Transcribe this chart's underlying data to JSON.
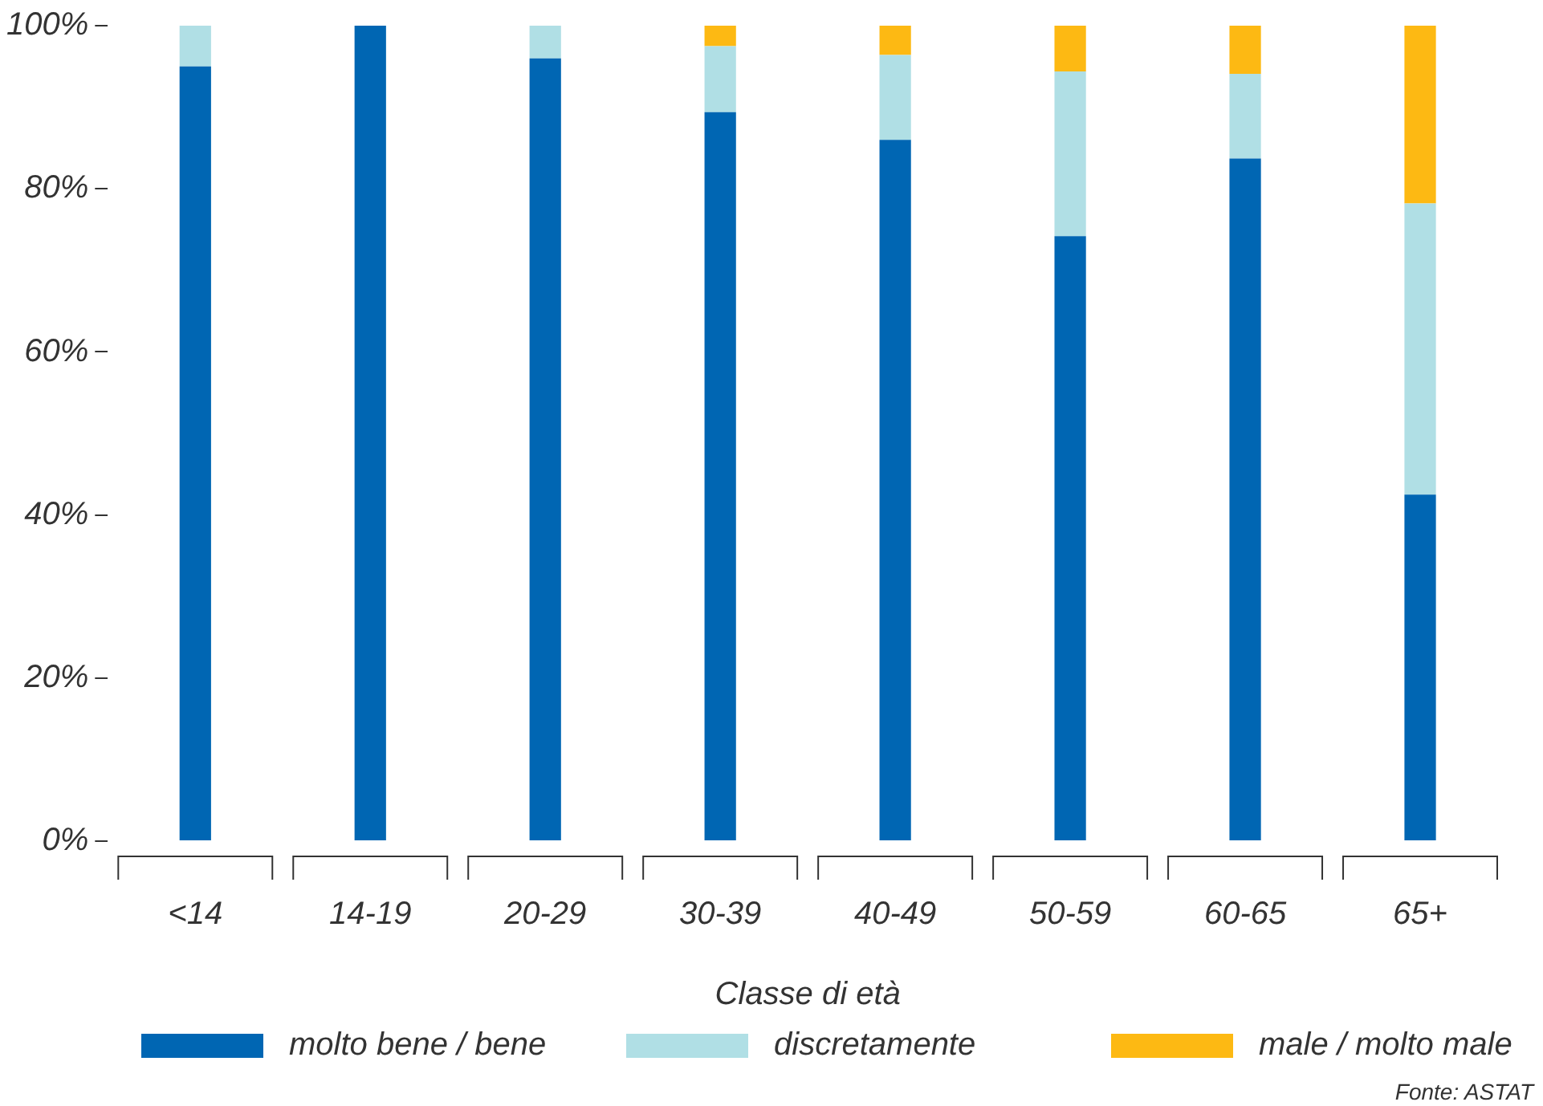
{
  "chart_data": {
    "type": "bar",
    "stacked": true,
    "xlabel": "Classe di età",
    "categories": [
      "<14",
      "14-19",
      "20-29",
      "30-39",
      "40-49",
      "50-59",
      "60-65",
      "65+"
    ],
    "series": [
      {
        "name": "molto bene / bene",
        "color": "#0066b3",
        "values": [
          95,
          100,
          96,
          89.4,
          86,
          74.2,
          83.7,
          42.5
        ]
      },
      {
        "name": "discretamente",
        "color": "#b0dfe5",
        "values": [
          5,
          0,
          4,
          8.1,
          10.4,
          20.2,
          10.4,
          35.7
        ]
      },
      {
        "name": "male / molto male",
        "color": "#fdb913",
        "values": [
          0,
          0,
          0,
          2.5,
          3.6,
          5.6,
          5.9,
          21.8
        ]
      }
    ],
    "ylim": [
      0,
      100
    ],
    "yticks": [
      {
        "value": 0,
        "label": "0%"
      },
      {
        "value": 20,
        "label": "20%"
      },
      {
        "value": 40,
        "label": "40%"
      },
      {
        "value": 60,
        "label": "60%"
      },
      {
        "value": 80,
        "label": "80%"
      },
      {
        "value": 100,
        "label": "100%"
      }
    ],
    "grid": false,
    "legend": "bottom",
    "annotations": [
      "Fonte: ASTAT"
    ]
  }
}
